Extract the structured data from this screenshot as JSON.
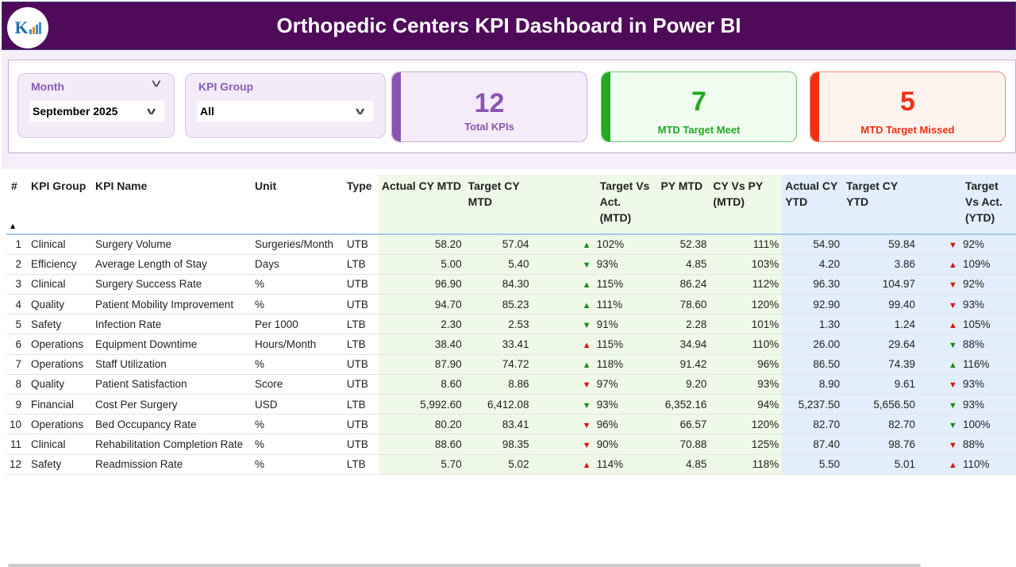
{
  "header": {
    "title": "Orthopedic Centers KPI Dashboard in Power BI",
    "logo_text": "K"
  },
  "filters": {
    "month": {
      "label": "Month",
      "value": "September 2025"
    },
    "kpi_group": {
      "label": "KPI Group",
      "value": "All"
    }
  },
  "cards": [
    {
      "value": "12",
      "label": "Total KPIs",
      "color": "#8a55b0"
    },
    {
      "value": "7",
      "label": "MTD Target Meet",
      "color": "#22aa22"
    },
    {
      "value": "5",
      "label": "MTD Target Missed",
      "color": "#f03010"
    }
  ],
  "table": {
    "columns": [
      "#",
      "KPI Group",
      "KPI Name",
      "Unit",
      "Type",
      "Actual CY MTD",
      "Target CY MTD",
      "Target Vs Act. (MTD)",
      "PY MTD",
      "CY Vs PY (MTD)",
      "Actual CY YTD",
      "Target CY YTD",
      "Target Vs Act. (YTD)"
    ],
    "rows": [
      [
        "1",
        "Clinical",
        "Surgery Volume",
        "Surgeries/Month",
        "UTB",
        "58.20",
        "57.04",
        "up",
        "green",
        "102%",
        "52.38",
        "111%",
        "54.90",
        "59.84",
        "down",
        "red",
        "92%"
      ],
      [
        "2",
        "Efficiency",
        "Average Length of Stay",
        "Days",
        "LTB",
        "5.00",
        "5.40",
        "down",
        "green",
        "93%",
        "4.85",
        "103%",
        "4.20",
        "3.86",
        "up",
        "red",
        "109%"
      ],
      [
        "3",
        "Clinical",
        "Surgery Success Rate",
        "%",
        "UTB",
        "96.90",
        "84.30",
        "up",
        "green",
        "115%",
        "86.24",
        "112%",
        "96.30",
        "104.97",
        "down",
        "red",
        "92%"
      ],
      [
        "4",
        "Quality",
        "Patient Mobility Improvement",
        "%",
        "UTB",
        "94.70",
        "85.23",
        "up",
        "green",
        "111%",
        "78.60",
        "120%",
        "92.90",
        "99.40",
        "down",
        "red",
        "93%"
      ],
      [
        "5",
        "Safety",
        "Infection Rate",
        "Per 1000",
        "LTB",
        "2.30",
        "2.53",
        "down",
        "green",
        "91%",
        "2.28",
        "101%",
        "1.30",
        "1.24",
        "up",
        "red",
        "105%"
      ],
      [
        "6",
        "Operations",
        "Equipment Downtime",
        "Hours/Month",
        "LTB",
        "38.40",
        "33.41",
        "up",
        "red",
        "115%",
        "34.94",
        "110%",
        "26.00",
        "29.64",
        "down",
        "green",
        "88%"
      ],
      [
        "7",
        "Operations",
        "Staff Utilization",
        "%",
        "UTB",
        "87.90",
        "74.72",
        "up",
        "green",
        "118%",
        "91.42",
        "96%",
        "86.50",
        "74.39",
        "up",
        "green",
        "116%"
      ],
      [
        "8",
        "Quality",
        "Patient Satisfaction",
        "Score",
        "UTB",
        "8.60",
        "8.86",
        "down",
        "red",
        "97%",
        "9.20",
        "93%",
        "8.90",
        "9.61",
        "down",
        "red",
        "93%"
      ],
      [
        "9",
        "Financial",
        "Cost Per Surgery",
        "USD",
        "LTB",
        "5,992.60",
        "6,412.08",
        "down",
        "green",
        "93%",
        "6,352.16",
        "94%",
        "5,237.50",
        "5,656.50",
        "down",
        "green",
        "93%"
      ],
      [
        "10",
        "Operations",
        "Bed Occupancy Rate",
        "%",
        "UTB",
        "80.20",
        "83.41",
        "down",
        "red",
        "96%",
        "66.57",
        "120%",
        "82.70",
        "82.70",
        "down",
        "green",
        "100%"
      ],
      [
        "11",
        "Clinical",
        "Rehabilitation Completion Rate",
        "%",
        "UTB",
        "88.60",
        "98.35",
        "down",
        "red",
        "90%",
        "70.88",
        "125%",
        "87.40",
        "98.76",
        "down",
        "red",
        "88%"
      ],
      [
        "12",
        "Safety",
        "Readmission Rate",
        "%",
        "LTB",
        "5.70",
        "5.02",
        "up",
        "red",
        "114%",
        "4.85",
        "118%",
        "5.50",
        "5.01",
        "up",
        "red",
        "110%"
      ]
    ]
  },
  "colors": {
    "header_bg": "#4f0a5a",
    "mtd_bg": "#eff9e8",
    "ytd_bg": "#e2eefb",
    "green": "#1a8a1a",
    "red": "#e01010"
  }
}
